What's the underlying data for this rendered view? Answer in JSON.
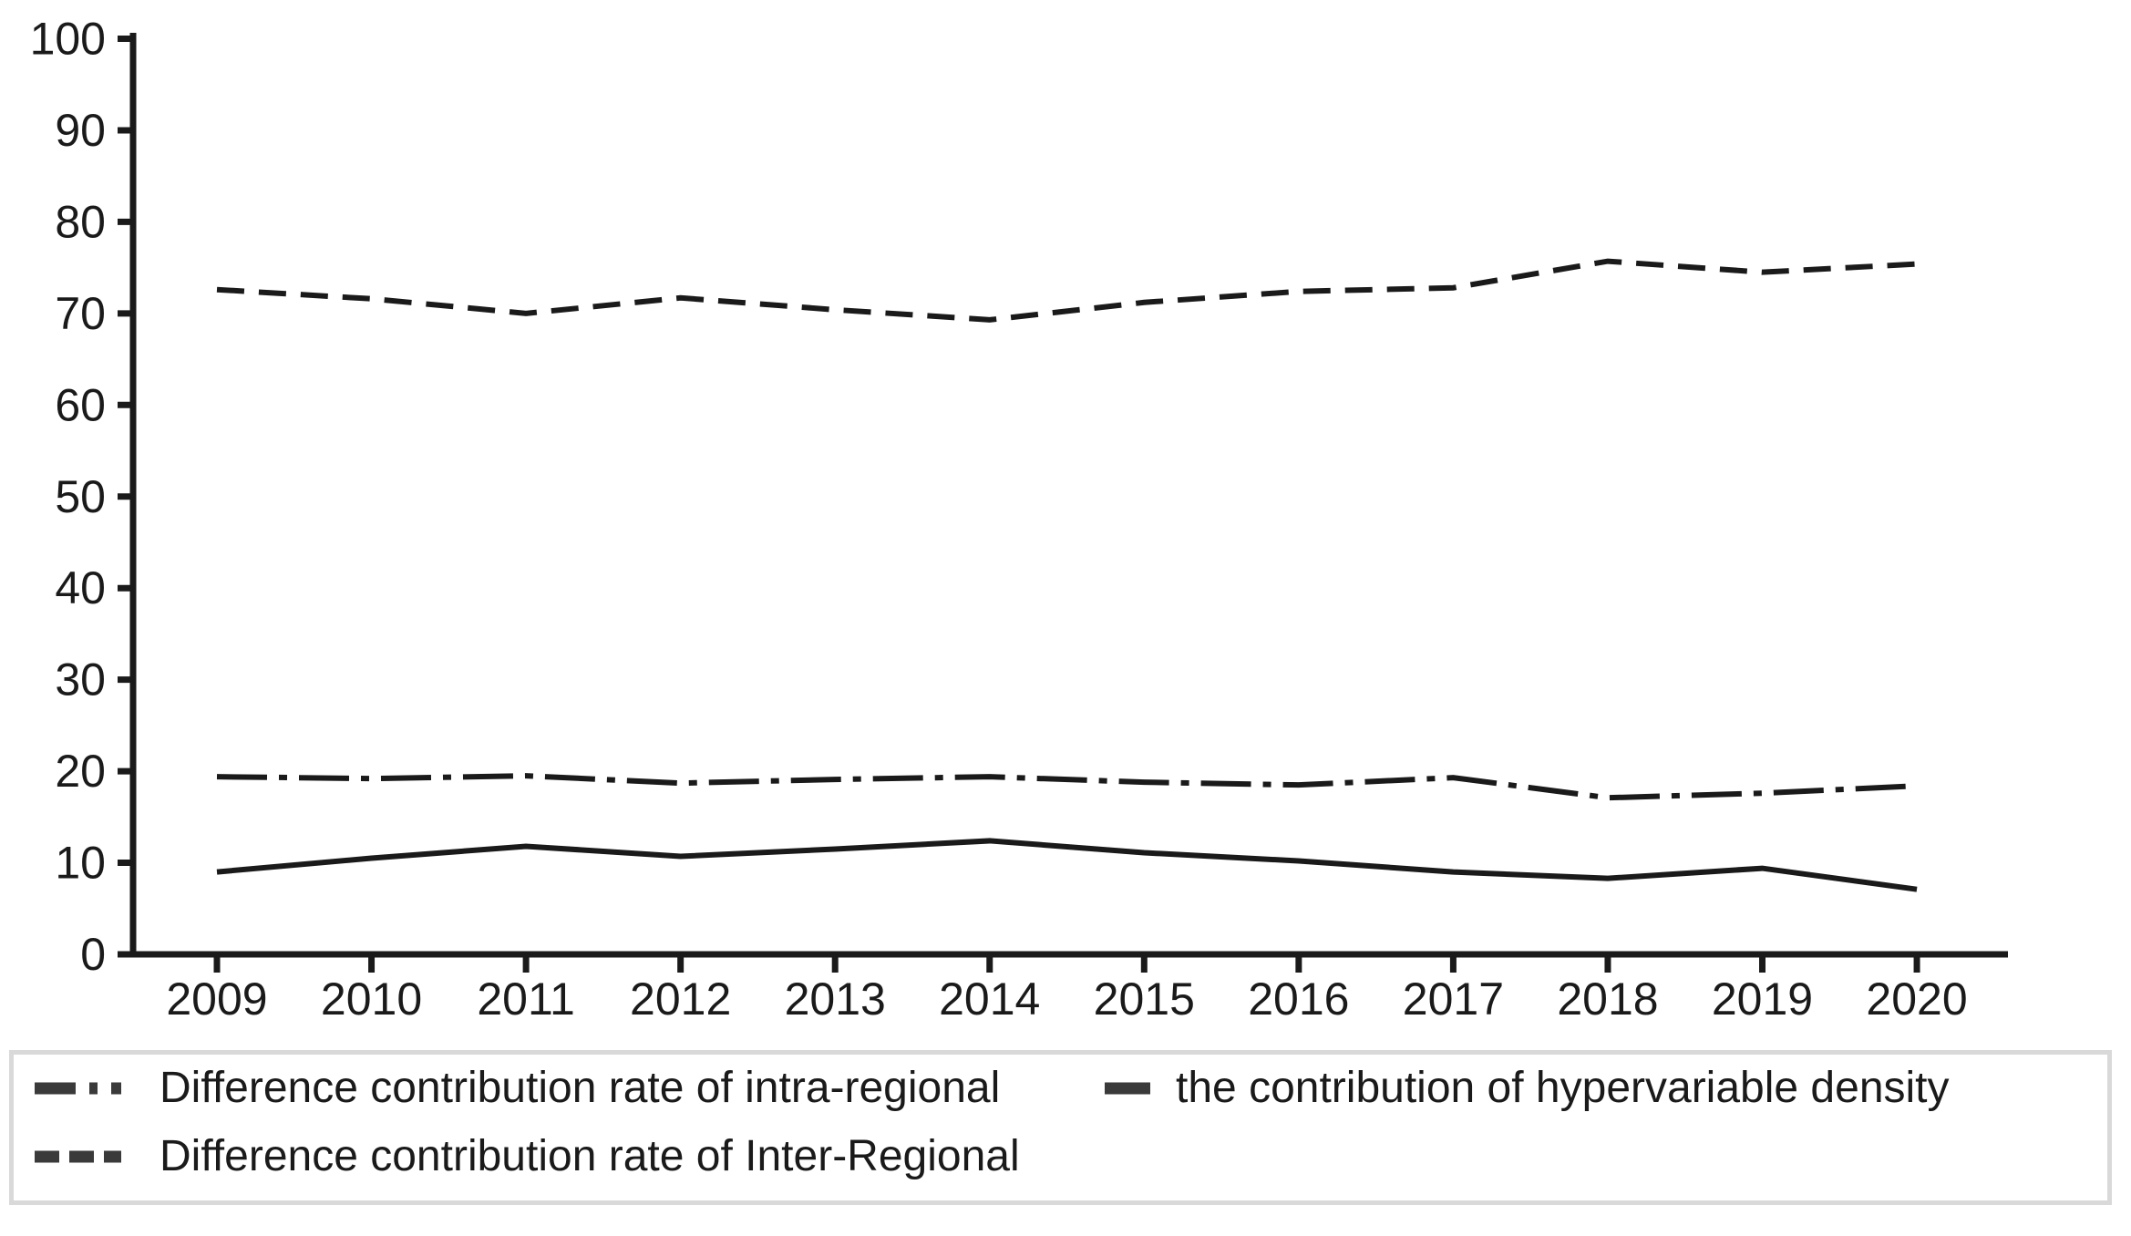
{
  "chart_data": {
    "type": "line",
    "title": "",
    "xlabel": "",
    "ylabel": "",
    "x": [
      "2009",
      "2010",
      "2011",
      "2012",
      "2013",
      "2014",
      "2015",
      "2016",
      "2017",
      "2018",
      "2019",
      "2020"
    ],
    "ylim": [
      0,
      100
    ],
    "yticks": [
      0,
      10,
      20,
      30,
      40,
      50,
      60,
      70,
      80,
      90,
      100
    ],
    "grid": false,
    "legend_position": "bottom",
    "line_color": "#1a1a1a",
    "axis_color": "#1a1a1a",
    "series": [
      {
        "name": "Difference contribution rate of Inter-Regional",
        "style": "dashed",
        "values": [
          72.6,
          71.6,
          70.0,
          71.7,
          70.4,
          69.3,
          71.2,
          72.4,
          72.8,
          75.7,
          74.5,
          75.4
        ]
      },
      {
        "name": "Difference contribution rate of intra-regional",
        "style": "dash-dot",
        "values": [
          19.4,
          19.2,
          19.5,
          18.7,
          19.1,
          19.4,
          18.8,
          18.5,
          19.3,
          17.1,
          17.6,
          18.4
        ]
      },
      {
        "name": "the contribution of hypervariable density",
        "style": "solid",
        "values": [
          9.0,
          10.5,
          11.8,
          10.7,
          11.5,
          12.4,
          11.1,
          10.2,
          9.0,
          8.3,
          9.4,
          7.1
        ]
      }
    ]
  },
  "legend": {
    "border_color": "#d9d9d9",
    "items": [
      {
        "label": "Difference contribution rate of intra-regional",
        "style": "dash-dot"
      },
      {
        "label": "the contribution of hypervariable density",
        "style": "solid"
      },
      {
        "label": "Difference contribution rate of Inter-Regional",
        "style": "dashed"
      }
    ]
  }
}
